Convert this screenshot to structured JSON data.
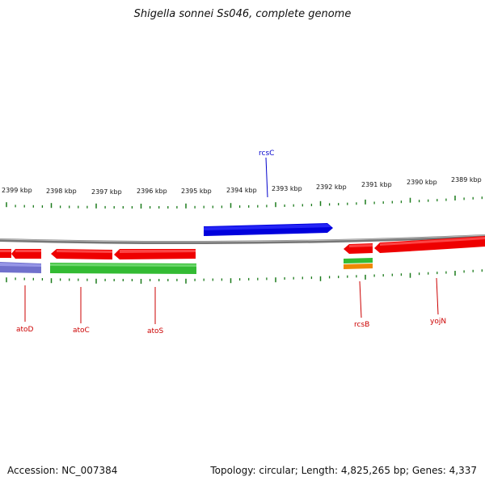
{
  "title": "Shigella sonnei Ss046, complete genome",
  "accession": "Accession: NC_007384",
  "summary": "Topology: circular; Length: 4,825,265 bp; Genes: 4,337",
  "colors": {
    "backbone": "#7a7a7a",
    "ticks": "#1a7a1a",
    "forward_gene": "#0000dd",
    "reverse_gene": "#ee0000",
    "green_feature": "#33bb33",
    "purple_feature": "#7070cc",
    "orange_feature": "#ee8800"
  },
  "scale_labels": [
    "2399 kbp",
    "2398 kbp",
    "2397 kbp",
    "2396 kbp",
    "2395 kbp",
    "2394 kbp",
    "2393 kbp",
    "2392 kbp",
    "2391 kbp",
    "2390 kbp",
    "2389 kbp"
  ],
  "gene_labels": [
    {
      "name": "rcsC",
      "strand": "forward"
    },
    {
      "name": "atoD",
      "strand": "reverse"
    },
    {
      "name": "atoC",
      "strand": "reverse"
    },
    {
      "name": "atoS",
      "strand": "reverse"
    },
    {
      "name": "rcsB",
      "strand": "reverse"
    },
    {
      "name": "yojN",
      "strand": "reverse"
    }
  ]
}
